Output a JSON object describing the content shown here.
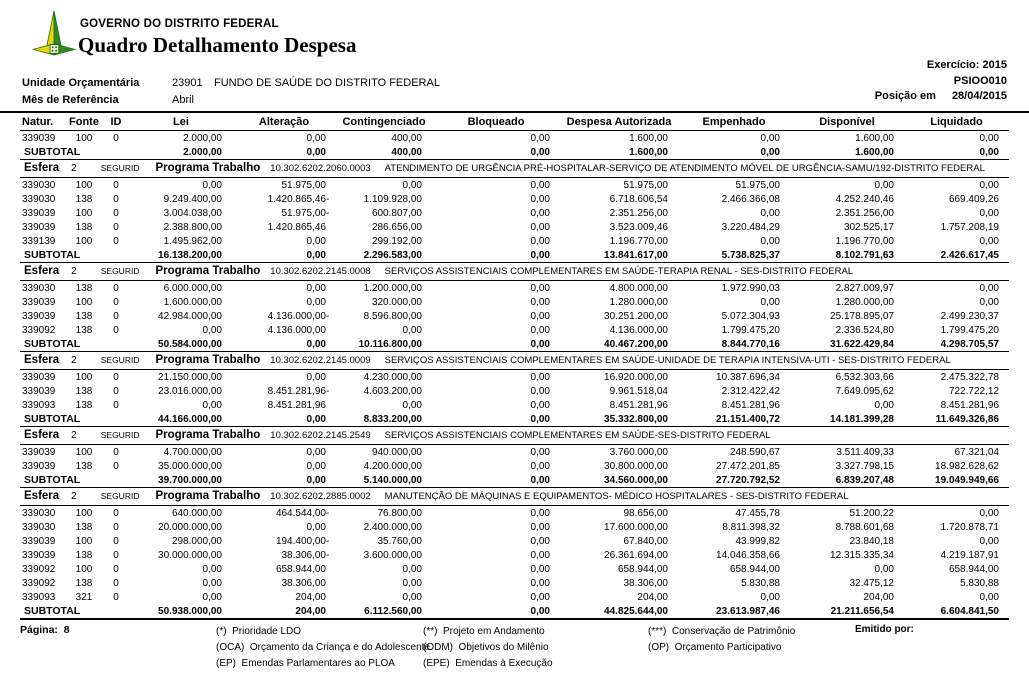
{
  "header": {
    "org": "GOVERNO DO DISTRITO FEDERAL",
    "title": "Quadro Detalhamento Despesa",
    "exercicio_label": "Exercício:",
    "exercicio_value": "2015",
    "report_code": "PSIOO010",
    "posicao_label": "Posição em",
    "posicao_value": "28/04/2015",
    "unidade_label": "Unidade Orçamentária",
    "unidade_code": "23901",
    "unidade_name": "FUNDO DE SAÚDE DO DISTRITO FEDERAL",
    "mes_label": "Mês de Referência",
    "mes_value": "Abril",
    "logo_colors": {
      "green": "#2e8b22",
      "dark_green": "#1d6b14",
      "yellow": "#e8d50a"
    }
  },
  "table": {
    "columns": [
      "Natur.",
      "Fonte",
      "ID",
      "Lei",
      "Alteração",
      "Contingenciado",
      "Bloqueado",
      "Despesa Autorizada",
      "Empenhado",
      "Disponível",
      "Liquidado"
    ],
    "column_keys": [
      "natur",
      "fonte",
      "id",
      "lei",
      "alteracao",
      "contingenciado",
      "bloqueado",
      "despesa-autorizada",
      "empenhado",
      "disponivel",
      "liquidado"
    ],
    "subtotal_label": "SUBTOTAL",
    "esfera_label": "Esfera",
    "programa_label": "Programa Trabalho",
    "groups": [
      {
        "esfera": null,
        "rows": [
          [
            "339039",
            "100",
            "0",
            "2.000,00",
            "0,00",
            "400,00",
            "0,00",
            "1.600,00",
            "0,00",
            "1.600,00",
            "0,00"
          ]
        ],
        "subtotal": [
          "2.000,00",
          "0,00",
          "400,00",
          "0,00",
          "1.600,00",
          "0,00",
          "1.600,00",
          "0,00"
        ]
      },
      {
        "esfera": {
          "num": "2",
          "regime": "SEGURID",
          "programa": "10.302.6202.2060.0003",
          "desc": "ATENDIMENTO DE URGÊNCIA PRÉ-HOSPITALAR-SERVIÇO DE ATENDIMENTO MÓVEL DE URGÊNCIA-SAMU/192-DISTRITO FEDERAL"
        },
        "rows": [
          [
            "339030",
            "100",
            "0",
            "0,00",
            "51.975,00",
            "0,00",
            "0,00",
            "51.975,00",
            "51.975,00",
            "0,00",
            "0,00"
          ],
          [
            "339030",
            "138",
            "0",
            "9.249.400,00",
            "1.420.865,46 -",
            "1.109.928,00",
            "0,00",
            "6.718.606,54",
            "2.466.366,08",
            "4.252.240,46",
            "669.409,26"
          ],
          [
            "339039",
            "100",
            "0",
            "3.004.038,00",
            "51.975,00 -",
            "600.807,00",
            "0,00",
            "2.351.256,00",
            "0,00",
            "2.351.256,00",
            "0,00"
          ],
          [
            "339039",
            "138",
            "0",
            "2.388.800,00",
            "1.420.865,46",
            "286.656,00",
            "0,00",
            "3.523.009,46",
            "3.220.484,29",
            "302.525,17",
            "1.757.208,19"
          ],
          [
            "339139",
            "100",
            "0",
            "1.495.962,00",
            "0,00",
            "299.192,00",
            "0,00",
            "1.196.770,00",
            "0,00",
            "1.196.770,00",
            "0,00"
          ]
        ],
        "subtotal": [
          "16.138.200,00",
          "0,00",
          "2.296.583,00",
          "0,00",
          "13.841.617,00",
          "5.738.825,37",
          "8.102.791,63",
          "2.426.617,45"
        ]
      },
      {
        "esfera": {
          "num": "2",
          "regime": "SEGURID",
          "programa": "10.302.6202.2145.0008",
          "desc": "SERVIÇOS ASSISTENCIAIS COMPLEMENTARES EM SAÚDE-TERAPIA RENAL - SES-DISTRITO FEDERAL"
        },
        "rows": [
          [
            "339030",
            "138",
            "0",
            "6.000.000,00",
            "0,00",
            "1.200.000,00",
            "0,00",
            "4.800.000,00",
            "1.972.990,03",
            "2.827.009,97",
            "0,00"
          ],
          [
            "339039",
            "100",
            "0",
            "1.600.000,00",
            "0,00",
            "320.000,00",
            "0,00",
            "1.280.000,00",
            "0,00",
            "1.280.000,00",
            "0,00"
          ],
          [
            "339039",
            "138",
            "0",
            "42.984.000,00",
            "4.136.000,00 -",
            "8.596.800,00",
            "0,00",
            "30.251.200,00",
            "5.072.304,93",
            "25.178.895,07",
            "2.499.230,37"
          ],
          [
            "339092",
            "138",
            "0",
            "0,00",
            "4.136.000,00",
            "0,00",
            "0,00",
            "4.136.000,00",
            "1.799.475,20",
            "2.336.524,80",
            "1.799.475,20"
          ]
        ],
        "subtotal": [
          "50.584.000,00",
          "0,00",
          "10.116.800,00",
          "0,00",
          "40.467.200,00",
          "8.844.770,16",
          "31.622.429,84",
          "4.298.705,57"
        ]
      },
      {
        "esfera": {
          "num": "2",
          "regime": "SEGURID",
          "programa": "10.302.6202.2145.0009",
          "desc": "SERVIÇOS ASSISTENCIAIS COMPLEMENTARES EM SAÚDE-UNIDADE DE TERAPIA INTENSIVA-UTI - SES-DISTRITO FEDERAL"
        },
        "rows": [
          [
            "339039",
            "100",
            "0",
            "21.150.000,00",
            "0,00",
            "4.230.000,00",
            "0,00",
            "16.920.000,00",
            "10.387.696,34",
            "6.532.303,66",
            "2.475.322,78"
          ],
          [
            "339039",
            "138",
            "0",
            "23.016.000,00",
            "8.451.281,96 -",
            "4.603.200,00",
            "0,00",
            "9.961.518,04",
            "2.312.422,42",
            "7.649.095,62",
            "722.722,12"
          ],
          [
            "339093",
            "138",
            "0",
            "0,00",
            "8.451.281,96",
            "0,00",
            "0,00",
            "8.451.281,96",
            "8.451.281,96",
            "0,00",
            "8.451.281,96"
          ]
        ],
        "subtotal": [
          "44.166.000,00",
          "0,00",
          "8.833.200,00",
          "0,00",
          "35.332.800,00",
          "21.151.400,72",
          "14.181.399,28",
          "11.649.326,86"
        ]
      },
      {
        "esfera": {
          "num": "2",
          "regime": "SEGURID",
          "programa": "10.302.6202.2145.2549",
          "desc": "SERVIÇOS ASSISTENCIAIS COMPLEMENTARES EM SAÚDE-SES-DISTRITO FEDERAL"
        },
        "rows": [
          [
            "339039",
            "100",
            "0",
            "4.700.000,00",
            "0,00",
            "940.000,00",
            "0,00",
            "3.760.000,00",
            "248.590,67",
            "3.511.409,33",
            "67.321,04"
          ],
          [
            "339039",
            "138",
            "0",
            "35.000.000,00",
            "0,00",
            "4.200.000,00",
            "0,00",
            "30.800.000,00",
            "27.472.201,85",
            "3.327.798,15",
            "18.982.628,62"
          ]
        ],
        "subtotal": [
          "39.700.000,00",
          "0,00",
          "5.140.000,00",
          "0,00",
          "34.560.000,00",
          "27.720.792,52",
          "6.839.207,48",
          "19.049.949,66"
        ]
      },
      {
        "esfera": {
          "num": "2",
          "regime": "SEGURID",
          "programa": "10.302.6202.2885.0002",
          "desc": "MANUTENÇÃO DE MÁQUINAS E EQUIPAMENTOS- MÉDICO HOSPITALARES - SES-DISTRITO FEDERAL"
        },
        "rows": [
          [
            "339030",
            "100",
            "0",
            "640.000,00",
            "464.544,00 -",
            "76.800,00",
            "0,00",
            "98.656,00",
            "47.455,78",
            "51.200,22",
            "0,00"
          ],
          [
            "339030",
            "138",
            "0",
            "20.000.000,00",
            "0,00",
            "2.400.000,00",
            "0,00",
            "17.600.000,00",
            "8.811.398,32",
            "8.788.601,68",
            "1.720.878,71"
          ],
          [
            "339039",
            "100",
            "0",
            "298.000,00",
            "194.400,00 -",
            "35.760,00",
            "0,00",
            "67.840,00",
            "43.999,82",
            "23.840,18",
            "0,00"
          ],
          [
            "339039",
            "138",
            "0",
            "30.000.000,00",
            "38.306,00 -",
            "3.600.000,00",
            "0,00",
            "26.361.694,00",
            "14.046.358,66",
            "12.315.335,34",
            "4.219.187,91"
          ],
          [
            "339092",
            "100",
            "0",
            "0,00",
            "658.944,00",
            "0,00",
            "0,00",
            "658.944,00",
            "658.944,00",
            "0,00",
            "658.944,00"
          ],
          [
            "339092",
            "138",
            "0",
            "0,00",
            "38.306,00",
            "0,00",
            "0,00",
            "38.306,00",
            "5.830,88",
            "32.475,12",
            "5.830,88"
          ],
          [
            "339093",
            "321",
            "0",
            "0,00",
            "204,00",
            "0,00",
            "0,00",
            "204,00",
            "0,00",
            "204,00",
            "0,00"
          ]
        ],
        "subtotal": [
          "50.938.000,00",
          "204,00",
          "6.112.560,00",
          "0,00",
          "44.825.644,00",
          "23.613.987,46",
          "21.211.656,54",
          "6.604.841,50"
        ]
      }
    ]
  },
  "footer": {
    "pagina_label": "Página:",
    "pagina_value": "8",
    "legend": [
      [
        "(*)  Prioridade LDO",
        "(OCA)  Orçamento da Criança e do Adolescente",
        "(EP)  Emendas Parlamentares ao PLOA"
      ],
      [
        "(**)  Projeto em Andamento",
        "(ODM)  Objetivos do Milênio",
        "(EPE)  Emendas à Execução"
      ],
      [
        "(***)  Conservação de Patrimônio",
        "(OP)  Orçamento Participativo"
      ]
    ],
    "emitido_label": "Emitido por:"
  }
}
